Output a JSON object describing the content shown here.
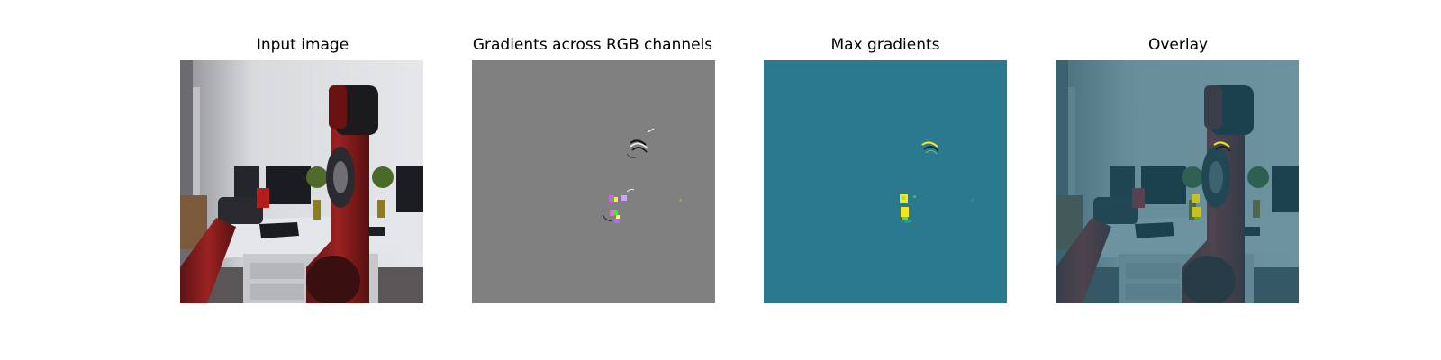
{
  "panels": [
    {
      "title": "Input image",
      "content": "photo of a red robot arm beside a desk with computer monitors in an office"
    },
    {
      "title": "Gradients across RGB channels",
      "content": "gray map with small colored gradient marks near the robot head and gripper area"
    },
    {
      "title": "Max gradients",
      "content": "teal map with small yellow gradient highlights"
    },
    {
      "title": "Overlay",
      "content": "input image tinted with the teal gradient map"
    }
  ],
  "colors": {
    "gray_background": "#808080",
    "teal_background": "#2a798e",
    "highlight_yellow": "#f3e51e",
    "highlight_green": "#6ece58",
    "highlight_magenta": "#c060e0"
  }
}
